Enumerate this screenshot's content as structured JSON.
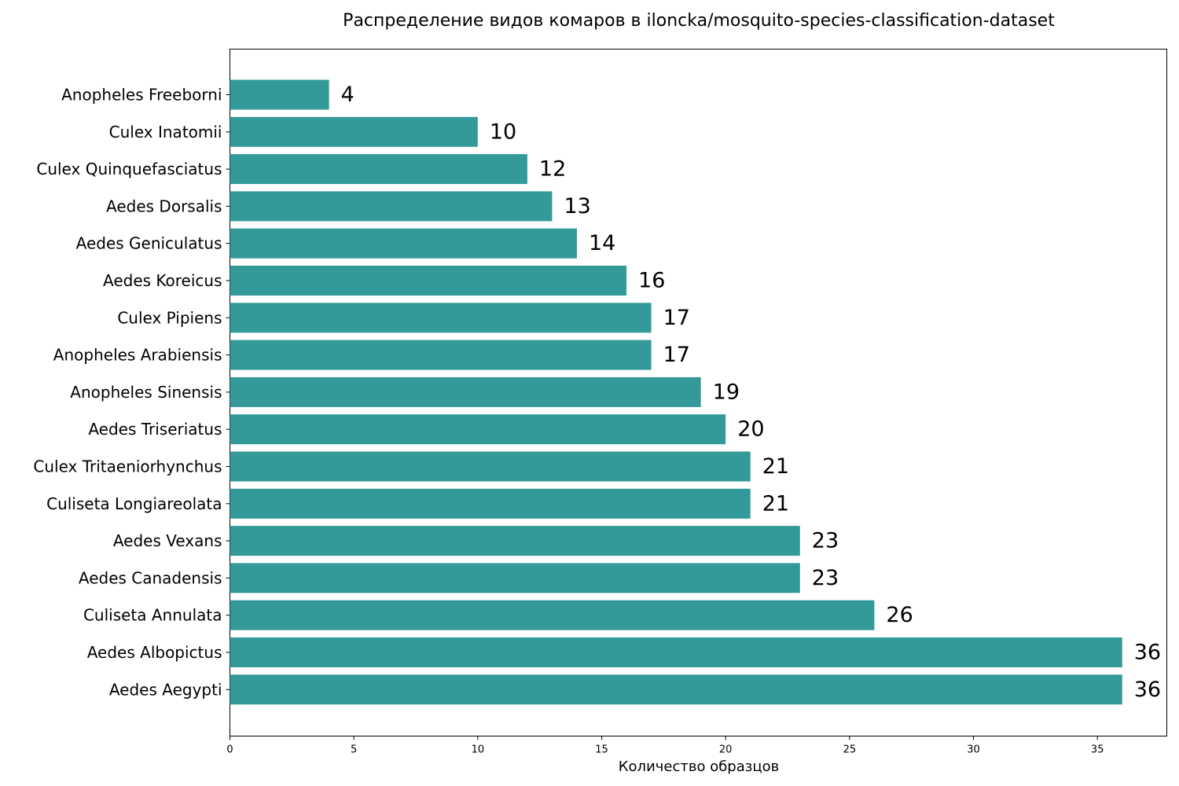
{
  "chart_data": {
    "type": "bar",
    "orientation": "horizontal",
    "title": "Распределение видов комаров в iloncka/mosquito-species-classification-dataset",
    "xlabel": "Количество образцов",
    "ylabel": "",
    "categories": [
      "Anopheles Freeborni",
      "Culex Inatomii",
      "Culex Quinquefasciatus",
      "Aedes Dorsalis",
      "Aedes Geniculatus",
      "Aedes Koreicus",
      "Culex Pipiens",
      "Anopheles Arabiensis",
      "Anopheles Sinensis",
      "Aedes Triseriatus",
      "Culex Tritaeniorhynchus",
      "Culiseta Longiareolata",
      "Aedes Vexans",
      "Aedes Canadensis",
      "Culiseta Annulata",
      "Aedes Albopictus",
      "Aedes Aegypti"
    ],
    "values": [
      4,
      10,
      12,
      13,
      14,
      16,
      17,
      17,
      19,
      20,
      21,
      21,
      23,
      23,
      26,
      36,
      36
    ],
    "xlim": [
      0,
      37.8
    ],
    "xticks": [
      0,
      5,
      10,
      15,
      20,
      25,
      30,
      35
    ],
    "bar_color": "#339999",
    "grid": false,
    "legend": "none"
  }
}
